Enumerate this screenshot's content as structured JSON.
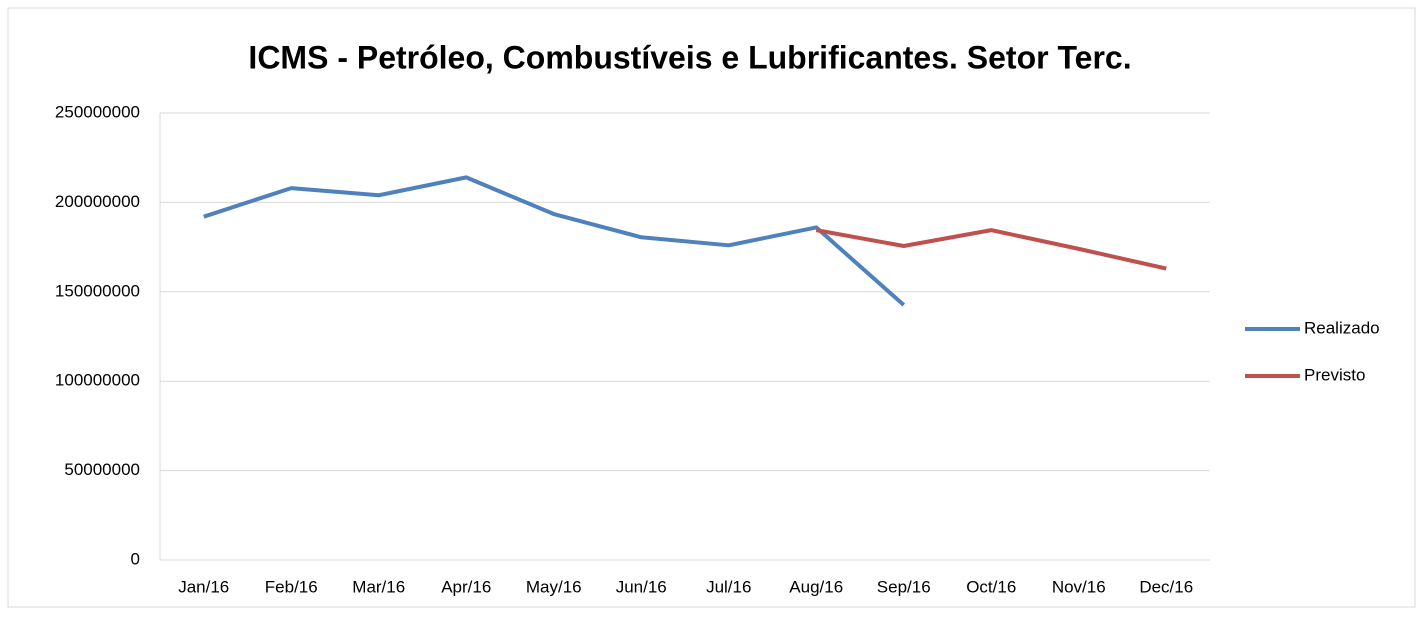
{
  "chart_data": {
    "type": "line",
    "title": "ICMS - Petróleo, Combustíveis e Lubrificantes. Setor Terc.",
    "categories": [
      "Jan/16",
      "Feb/16",
      "Mar/16",
      "Apr/16",
      "May/16",
      "Jun/16",
      "Jul/16",
      "Aug/16",
      "Sep/16",
      "Oct/16",
      "Nov/16",
      "Dec/16"
    ],
    "series": [
      {
        "name": "Realizado",
        "color": "#4f81bd",
        "values": [
          192000000,
          208000000,
          204000000,
          214000000,
          193500000,
          180500000,
          176000000,
          186000000,
          142600000,
          null,
          null,
          null
        ]
      },
      {
        "name": "Previsto",
        "color": "#c0504d",
        "values": [
          null,
          null,
          null,
          null,
          null,
          null,
          null,
          184500000,
          175600000,
          184500000,
          174000000,
          163000000
        ]
      }
    ],
    "ylim": [
      0,
      250000000
    ],
    "yticks": [
      0,
      50000000,
      100000000,
      150000000,
      200000000,
      250000000
    ],
    "grid": true,
    "legend": "right"
  }
}
